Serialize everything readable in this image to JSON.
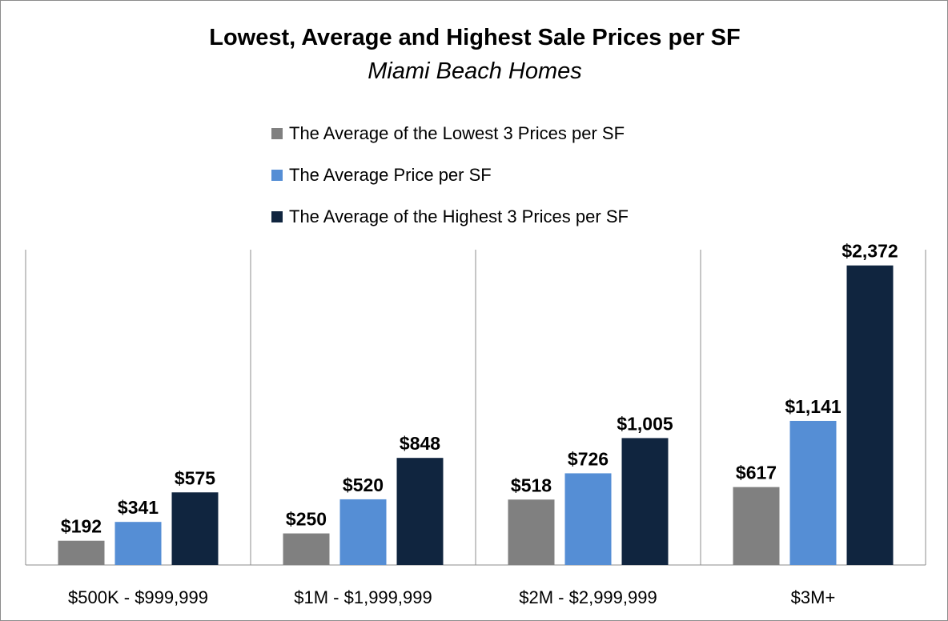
{
  "chart_data": {
    "type": "bar",
    "title": "Lowest, Average and Highest Sale Prices per SF",
    "subtitle": "Miami Beach Homes",
    "categories": [
      "$500K - $999,999",
      "$1M - $1,999,999",
      "$2M - $2,999,999",
      "$3M+"
    ],
    "series": [
      {
        "name": "The Average of the Lowest 3 Prices per SF",
        "color": "#808080",
        "values": [
          192,
          250,
          518,
          617
        ],
        "labels": [
          "$192",
          "$250",
          "$518",
          "$617"
        ]
      },
      {
        "name": "The Average Price per SF",
        "color": "#558ed5",
        "values": [
          341,
          520,
          726,
          1141
        ],
        "labels": [
          "$341",
          "$520",
          "$726",
          "$1,141"
        ]
      },
      {
        "name": "The Average of the Highest 3 Prices per SF",
        "color": "#10253f",
        "values": [
          575,
          848,
          1005,
          2372
        ],
        "labels": [
          "$575",
          "$848",
          "$1,005",
          "$2,372"
        ]
      }
    ],
    "ylim": [
      0,
      2400
    ],
    "grid": false,
    "legend": "top"
  }
}
